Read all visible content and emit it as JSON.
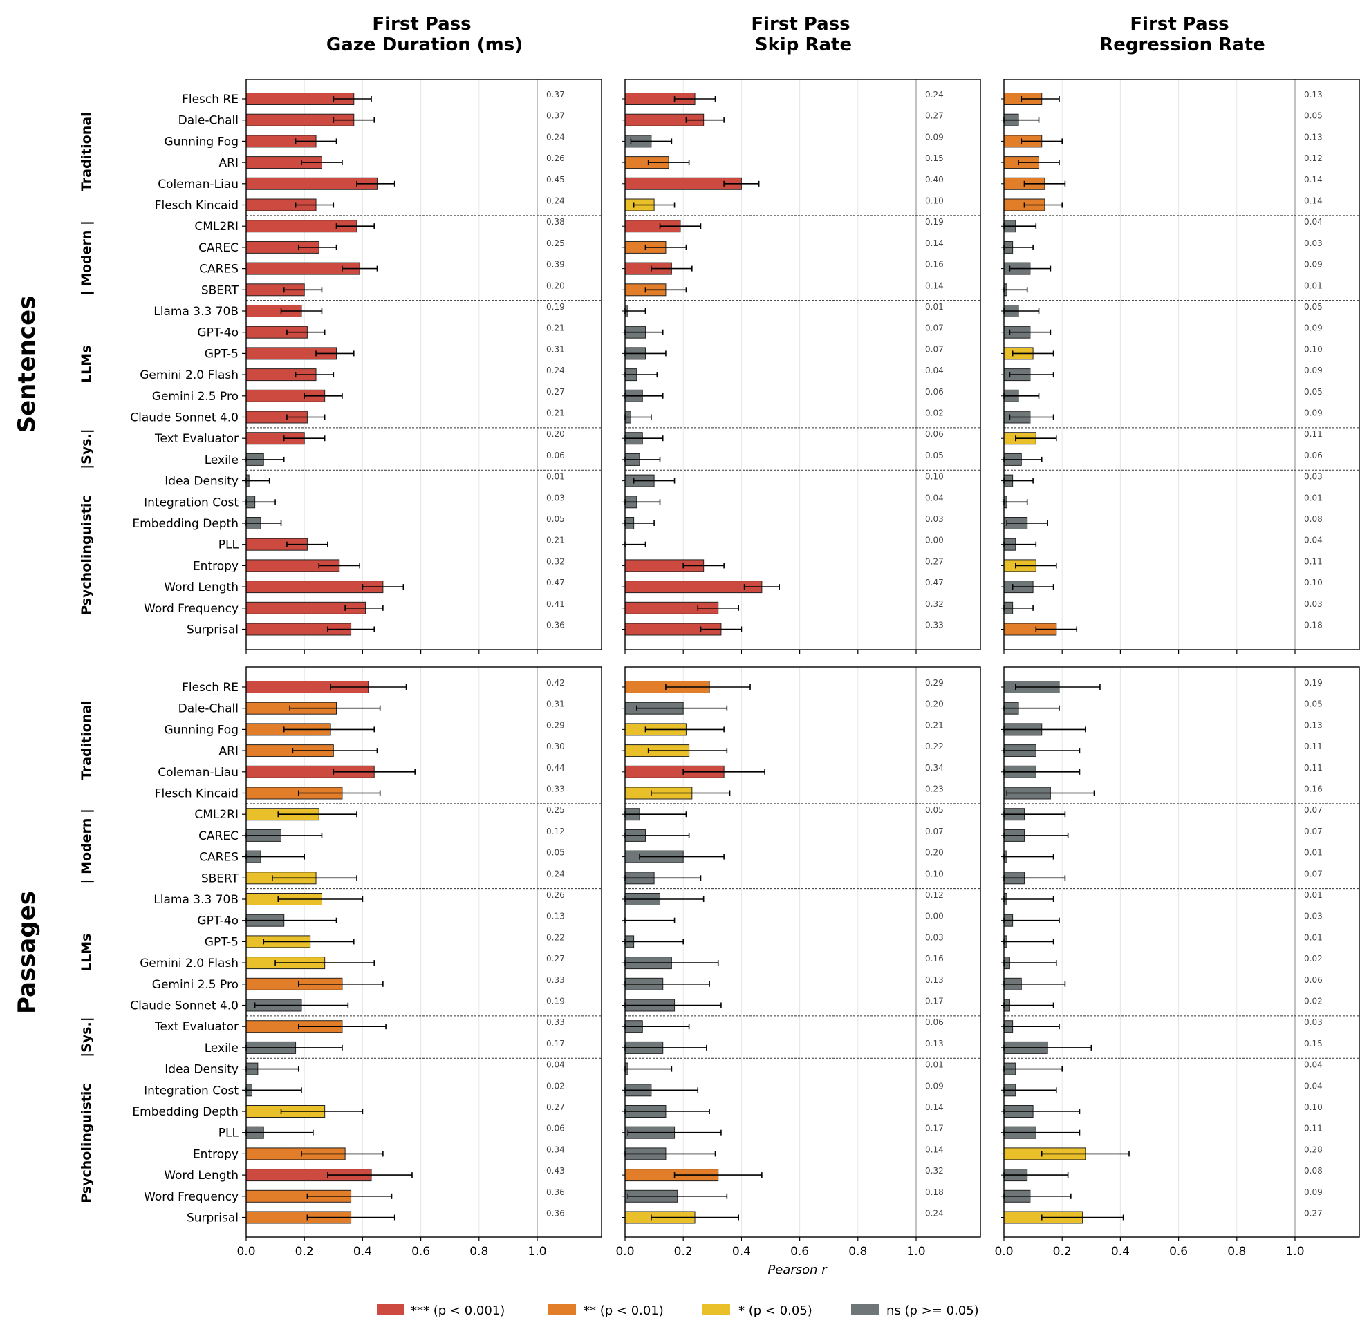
{
  "chart_data": {
    "type": "bar",
    "orientation": "horizontal",
    "xlabel": "Pearson r",
    "xlim": [
      0,
      1.2
    ],
    "xticks": [
      0.0,
      0.2,
      0.4,
      0.6,
      0.8,
      1.0
    ],
    "xtick_labels": [
      "0.0",
      "0.2",
      "0.4",
      "0.6",
      "0.8",
      "1.0"
    ],
    "grid": true,
    "columns": [
      {
        "title_line1": "First Pass",
        "title_line2": "Gaze Duration (ms)"
      },
      {
        "title_line1": "First Pass",
        "title_line2": "Skip Rate"
      },
      {
        "title_line1": "First Pass",
        "title_line2": "Regression Rate"
      }
    ],
    "rows": [
      {
        "title": "Sentences"
      },
      {
        "title": "Passages"
      }
    ],
    "groups": [
      {
        "label": "Traditional",
        "count": 6
      },
      {
        "label": "| Modern |",
        "count": 4
      },
      {
        "label": "LLMs",
        "count": 6
      },
      {
        "label": "|Sys.|",
        "count": 2
      },
      {
        "label": "Psycholinguistic",
        "count": 8
      }
    ],
    "categories": [
      "Flesch RE",
      "Dale-Chall",
      "Gunning Fog",
      "ARI",
      "Coleman-Liau",
      "Flesch Kincaid",
      "CML2RI",
      "CAREC",
      "CARES",
      "SBERT",
      "Llama 3.3 70B",
      "GPT-4o",
      "GPT-5",
      "Gemini 2.0 Flash",
      "Gemini 2.5 Pro",
      "Claude Sonnet 4.0",
      "Text Evaluator",
      "Lexile",
      "Idea Density",
      "Integration Cost",
      "Embedding Depth",
      "PLL",
      "Entropy",
      "Word Length",
      "Word Frequency",
      "Surprisal"
    ],
    "significance_colors": {
      "***": "#cc4a40",
      "**": "#e27d2a",
      "*": "#e9c02a",
      "ns": "#6f7677"
    },
    "legend": [
      {
        "key": "***",
        "label": "*** (p < 0.001)"
      },
      {
        "key": "**",
        "label": "** (p < 0.01)"
      },
      {
        "key": "*",
        "label": "* (p < 0.05)"
      },
      {
        "key": "ns",
        "label": "ns (p >= 0.05)"
      }
    ],
    "panels": [
      {
        "row": 0,
        "col": 0,
        "values": [
          0.37,
          0.37,
          0.24,
          0.26,
          0.45,
          0.24,
          0.38,
          0.25,
          0.39,
          0.2,
          0.19,
          0.21,
          0.31,
          0.24,
          0.27,
          0.21,
          0.2,
          0.06,
          0.01,
          0.03,
          0.05,
          0.21,
          0.32,
          0.47,
          0.41,
          0.36
        ],
        "sig": [
          "***",
          "***",
          "***",
          "***",
          "***",
          "***",
          "***",
          "***",
          "***",
          "***",
          "***",
          "***",
          "***",
          "***",
          "***",
          "***",
          "***",
          "ns",
          "ns",
          "ns",
          "ns",
          "***",
          "***",
          "***",
          "***",
          "***"
        ],
        "ci_low": [
          0.3,
          0.3,
          0.17,
          0.19,
          0.38,
          0.17,
          0.31,
          0.18,
          0.33,
          0.13,
          0.12,
          0.14,
          0.24,
          0.17,
          0.2,
          0.14,
          0.13,
          0.0,
          0.0,
          0.0,
          0.0,
          0.14,
          0.25,
          0.4,
          0.34,
          0.28
        ],
        "ci_high": [
          0.43,
          0.44,
          0.31,
          0.33,
          0.51,
          0.3,
          0.44,
          0.31,
          0.45,
          0.26,
          0.26,
          0.27,
          0.37,
          0.3,
          0.33,
          0.27,
          0.27,
          0.13,
          0.08,
          0.1,
          0.12,
          0.28,
          0.39,
          0.54,
          0.47,
          0.44
        ]
      },
      {
        "row": 0,
        "col": 1,
        "values": [
          0.24,
          0.27,
          0.09,
          0.15,
          0.4,
          0.1,
          0.19,
          0.14,
          0.16,
          0.14,
          0.01,
          0.07,
          0.07,
          0.04,
          0.06,
          0.02,
          0.06,
          0.05,
          0.1,
          0.04,
          0.03,
          0.0,
          0.27,
          0.47,
          0.32,
          0.33
        ],
        "sig": [
          "***",
          "***",
          "ns",
          "**",
          "***",
          "*",
          "***",
          "**",
          "***",
          "**",
          "ns",
          "ns",
          "ns",
          "ns",
          "ns",
          "ns",
          "ns",
          "ns",
          "ns",
          "ns",
          "ns",
          "ns",
          "***",
          "***",
          "***",
          "***"
        ],
        "ci_low": [
          0.17,
          0.21,
          0.02,
          0.08,
          0.34,
          0.03,
          0.12,
          0.07,
          0.09,
          0.07,
          0.0,
          0.0,
          0.0,
          0.0,
          0.0,
          0.0,
          0.0,
          0.0,
          0.03,
          0.0,
          0.0,
          0.0,
          0.2,
          0.41,
          0.25,
          0.26
        ],
        "ci_high": [
          0.31,
          0.34,
          0.16,
          0.22,
          0.46,
          0.17,
          0.26,
          0.21,
          0.23,
          0.21,
          0.07,
          0.13,
          0.14,
          0.11,
          0.13,
          0.09,
          0.13,
          0.12,
          0.17,
          0.12,
          0.1,
          0.07,
          0.34,
          0.53,
          0.39,
          0.4
        ]
      },
      {
        "row": 0,
        "col": 2,
        "values": [
          0.13,
          0.05,
          0.13,
          0.12,
          0.14,
          0.14,
          0.04,
          0.03,
          0.09,
          0.01,
          0.05,
          0.09,
          0.1,
          0.09,
          0.05,
          0.09,
          0.11,
          0.06,
          0.03,
          0.01,
          0.08,
          0.04,
          0.11,
          0.1,
          0.03,
          0.18
        ],
        "sig": [
          "**",
          "ns",
          "**",
          "**",
          "**",
          "**",
          "ns",
          "ns",
          "ns",
          "ns",
          "ns",
          "ns",
          "*",
          "ns",
          "ns",
          "ns",
          "*",
          "ns",
          "ns",
          "ns",
          "ns",
          "ns",
          "*",
          "ns",
          "ns",
          "**"
        ],
        "ci_low": [
          0.06,
          0.0,
          0.06,
          0.05,
          0.07,
          0.07,
          0.0,
          0.0,
          0.02,
          0.0,
          0.0,
          0.02,
          0.03,
          0.02,
          0.0,
          0.02,
          0.04,
          0.0,
          0.0,
          0.0,
          0.01,
          0.0,
          0.04,
          0.03,
          0.0,
          0.11
        ],
        "ci_high": [
          0.19,
          0.12,
          0.2,
          0.19,
          0.21,
          0.2,
          0.11,
          0.1,
          0.16,
          0.08,
          0.12,
          0.16,
          0.17,
          0.17,
          0.12,
          0.17,
          0.18,
          0.13,
          0.1,
          0.08,
          0.15,
          0.11,
          0.18,
          0.17,
          0.1,
          0.25
        ]
      },
      {
        "row": 1,
        "col": 0,
        "values": [
          0.42,
          0.31,
          0.29,
          0.3,
          0.44,
          0.33,
          0.25,
          0.12,
          0.05,
          0.24,
          0.26,
          0.13,
          0.22,
          0.27,
          0.33,
          0.19,
          0.33,
          0.17,
          0.04,
          0.02,
          0.27,
          0.06,
          0.34,
          0.43,
          0.36,
          0.36
        ],
        "sig": [
          "***",
          "**",
          "**",
          "**",
          "***",
          "**",
          "*",
          "ns",
          "ns",
          "*",
          "*",
          "ns",
          "*",
          "*",
          "**",
          "ns",
          "**",
          "ns",
          "ns",
          "ns",
          "*",
          "ns",
          "**",
          "***",
          "**",
          "**"
        ],
        "ci_low": [
          0.29,
          0.15,
          0.13,
          0.16,
          0.3,
          0.18,
          0.11,
          0.0,
          0.0,
          0.09,
          0.11,
          0.0,
          0.06,
          0.1,
          0.18,
          0.03,
          0.18,
          0.0,
          0.0,
          0.0,
          0.12,
          0.0,
          0.19,
          0.28,
          0.21,
          0.21
        ],
        "ci_high": [
          0.55,
          0.46,
          0.44,
          0.45,
          0.58,
          0.46,
          0.38,
          0.26,
          0.2,
          0.38,
          0.4,
          0.31,
          0.37,
          0.44,
          0.47,
          0.35,
          0.48,
          0.33,
          0.18,
          0.19,
          0.4,
          0.23,
          0.47,
          0.57,
          0.5,
          0.51
        ]
      },
      {
        "row": 1,
        "col": 1,
        "values": [
          0.29,
          0.2,
          0.21,
          0.22,
          0.34,
          0.23,
          0.05,
          0.07,
          0.2,
          0.1,
          0.12,
          0.0,
          0.03,
          0.16,
          0.13,
          0.17,
          0.06,
          0.13,
          0.01,
          0.09,
          0.14,
          0.17,
          0.14,
          0.32,
          0.18,
          0.24
        ],
        "sig": [
          "**",
          "ns",
          "*",
          "*",
          "***",
          "*",
          "ns",
          "ns",
          "ns",
          "ns",
          "ns",
          "ns",
          "ns",
          "ns",
          "ns",
          "ns",
          "ns",
          "ns",
          "ns",
          "ns",
          "ns",
          "ns",
          "ns",
          "**",
          "ns",
          "*"
        ],
        "ci_low": [
          0.14,
          0.04,
          0.07,
          0.08,
          0.2,
          0.09,
          0.0,
          0.0,
          0.05,
          0.0,
          0.0,
          0.0,
          0.0,
          0.0,
          0.0,
          0.0,
          0.0,
          0.0,
          0.0,
          0.0,
          0.0,
          0.01,
          0.0,
          0.17,
          0.01,
          0.09
        ],
        "ci_high": [
          0.43,
          0.35,
          0.34,
          0.35,
          0.48,
          0.36,
          0.21,
          0.22,
          0.34,
          0.26,
          0.27,
          0.17,
          0.2,
          0.32,
          0.29,
          0.33,
          0.22,
          0.28,
          0.16,
          0.25,
          0.29,
          0.33,
          0.31,
          0.47,
          0.35,
          0.39
        ]
      },
      {
        "row": 1,
        "col": 2,
        "values": [
          0.19,
          0.05,
          0.13,
          0.11,
          0.11,
          0.16,
          0.07,
          0.07,
          0.01,
          0.07,
          0.01,
          0.03,
          0.01,
          0.02,
          0.06,
          0.02,
          0.03,
          0.15,
          0.04,
          0.04,
          0.1,
          0.11,
          0.28,
          0.08,
          0.09,
          0.27
        ],
        "sig": [
          "ns",
          "ns",
          "ns",
          "ns",
          "ns",
          "ns",
          "ns",
          "ns",
          "ns",
          "ns",
          "ns",
          "ns",
          "ns",
          "ns",
          "ns",
          "ns",
          "ns",
          "ns",
          "ns",
          "ns",
          "ns",
          "ns",
          "*",
          "ns",
          "ns",
          "*"
        ],
        "ci_low": [
          0.04,
          0.0,
          0.0,
          0.0,
          0.0,
          0.01,
          0.0,
          0.0,
          0.0,
          0.0,
          0.0,
          0.0,
          0.0,
          0.0,
          0.0,
          0.0,
          0.0,
          0.0,
          0.0,
          0.0,
          0.0,
          0.0,
          0.13,
          0.0,
          0.0,
          0.13
        ],
        "ci_high": [
          0.33,
          0.19,
          0.28,
          0.26,
          0.26,
          0.31,
          0.21,
          0.22,
          0.17,
          0.21,
          0.17,
          0.19,
          0.17,
          0.18,
          0.21,
          0.17,
          0.19,
          0.3,
          0.2,
          0.18,
          0.26,
          0.26,
          0.43,
          0.22,
          0.23,
          0.41
        ]
      }
    ]
  }
}
